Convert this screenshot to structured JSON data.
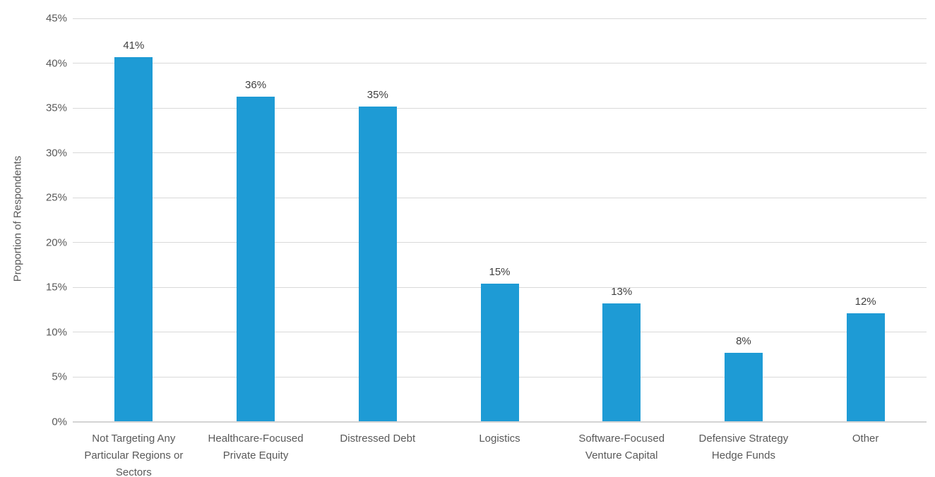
{
  "chart_data": {
    "type": "bar",
    "title": "",
    "xlabel": "",
    "ylabel": "Proportion of Respondents",
    "ylim": [
      0,
      45
    ],
    "ytick_step": 5,
    "ytick_labels": [
      "0%",
      "5%",
      "10%",
      "15%",
      "20%",
      "25%",
      "30%",
      "35%",
      "40%",
      "45%"
    ],
    "grid": true,
    "legend": "none",
    "categories": [
      "Not Targeting Any Particular Regions or Sectors",
      "Healthcare-Focused Private Equity",
      "Distressed Debt",
      "Logistics",
      "Software-Focused Venture Capital",
      "Defensive Strategy Hedge Funds",
      "Other"
    ],
    "values": [
      40.7,
      36.3,
      35.2,
      15.4,
      13.2,
      7.7,
      12.1
    ],
    "data_labels": [
      "41%",
      "36%",
      "35%",
      "15%",
      "13%",
      "8%",
      "12%"
    ],
    "bar_color": "#1e9bd5",
    "gridline_color": "#d9d9d9",
    "axis_line_color": "#d3d3d3",
    "tick_label_color": "#595959",
    "data_label_color": "#404040"
  }
}
